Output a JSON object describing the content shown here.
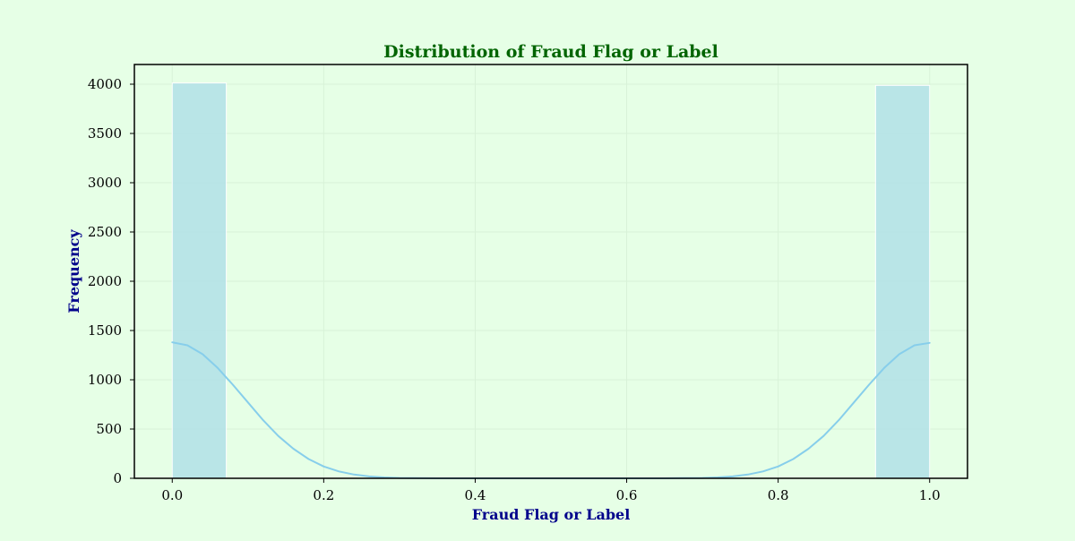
{
  "chart_data": {
    "type": "bar",
    "title": "Distribution of Fraud Flag or Label",
    "xlabel": "Fraud Flag or Label",
    "ylabel": "Frequency",
    "xlim": [
      -0.05,
      1.05
    ],
    "ylim": [
      0,
      4200
    ],
    "x_ticks": [
      0.0,
      0.2,
      0.4,
      0.6,
      0.8,
      1.0
    ],
    "x_tick_labels": [
      "0.0",
      "0.2",
      "0.4",
      "0.6",
      "0.8",
      "1.0"
    ],
    "y_ticks": [
      0,
      500,
      1000,
      1500,
      2000,
      2500,
      3000,
      3500,
      4000
    ],
    "y_tick_labels": [
      "0",
      "500",
      "1000",
      "1500",
      "2000",
      "2500",
      "3000",
      "3500",
      "4000"
    ],
    "grid": true,
    "bins": [
      {
        "x0": 0.0,
        "x1": 0.0714,
        "count": 4012
      },
      {
        "x0": 0.9286,
        "x1": 1.0,
        "count": 3988
      }
    ],
    "kde": {
      "x": [
        0.0,
        0.02,
        0.04,
        0.06,
        0.08,
        0.1,
        0.12,
        0.14,
        0.16,
        0.18,
        0.2,
        0.22,
        0.24,
        0.26,
        0.28,
        0.3,
        0.35,
        0.4,
        0.45,
        0.5,
        0.55,
        0.6,
        0.65,
        0.7,
        0.72,
        0.74,
        0.76,
        0.78,
        0.8,
        0.82,
        0.84,
        0.86,
        0.88,
        0.9,
        0.92,
        0.94,
        0.96,
        0.98,
        1.0
      ],
      "y": [
        1380,
        1350,
        1260,
        1120,
        950,
        770,
        590,
        430,
        300,
        195,
        120,
        70,
        38,
        19,
        9,
        4,
        0,
        0,
        0,
        0,
        0,
        0,
        0,
        4,
        9,
        19,
        38,
        70,
        120,
        195,
        300,
        430,
        590,
        770,
        950,
        1120,
        1260,
        1350,
        1375
      ]
    },
    "colors": {
      "background": "#e6ffe6",
      "bar_fill": "#b0e0e6",
      "bar_edge": "#ffffff",
      "kde_line": "#87ceeb",
      "title": "#006400",
      "axis_title": "#00008b",
      "grid": "#d8f2d8"
    }
  }
}
